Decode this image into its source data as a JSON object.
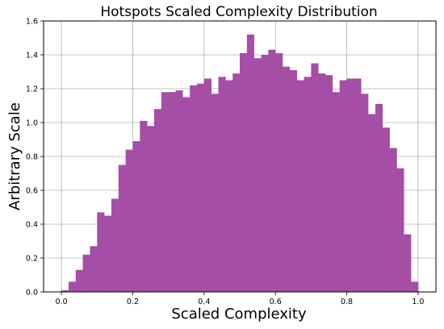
{
  "chart_data": {
    "type": "bar",
    "title": "Hotspots Scaled Complexity Distribution",
    "xlabel": "Scaled Complexity",
    "ylabel": "Arbitrary Scale",
    "xlim": [
      -0.05,
      1.05
    ],
    "ylim": [
      0,
      1.6
    ],
    "xticks": [
      0.0,
      0.2,
      0.4,
      0.6,
      0.8,
      1.0
    ],
    "xtick_labels": [
      "0.0",
      "0.2",
      "0.4",
      "0.6",
      "0.8",
      "1.0"
    ],
    "yticks": [
      0.0,
      0.2,
      0.4,
      0.6,
      0.8,
      1.0,
      1.2,
      1.4,
      1.6
    ],
    "ytick_labels": [
      "0.0",
      "0.2",
      "0.4",
      "0.6",
      "0.8",
      "1.0",
      "1.2",
      "1.4",
      "1.6"
    ],
    "grid": true,
    "bar_color": "#a54ea6",
    "bin_start": 0.0,
    "bin_width": 0.02,
    "values": [
      0.01,
      0.06,
      0.13,
      0.22,
      0.27,
      0.47,
      0.45,
      0.55,
      0.75,
      0.84,
      0.89,
      1.01,
      0.98,
      1.08,
      1.18,
      1.18,
      1.19,
      1.15,
      1.22,
      1.23,
      1.26,
      1.17,
      1.27,
      1.25,
      1.29,
      1.41,
      1.52,
      1.38,
      1.4,
      1.43,
      1.41,
      1.33,
      1.31,
      1.25,
      1.27,
      1.35,
      1.29,
      1.28,
      1.18,
      1.25,
      1.26,
      1.26,
      1.17,
      1.05,
      1.11,
      0.97,
      0.85,
      0.73,
      0.34,
      0.06
    ]
  }
}
